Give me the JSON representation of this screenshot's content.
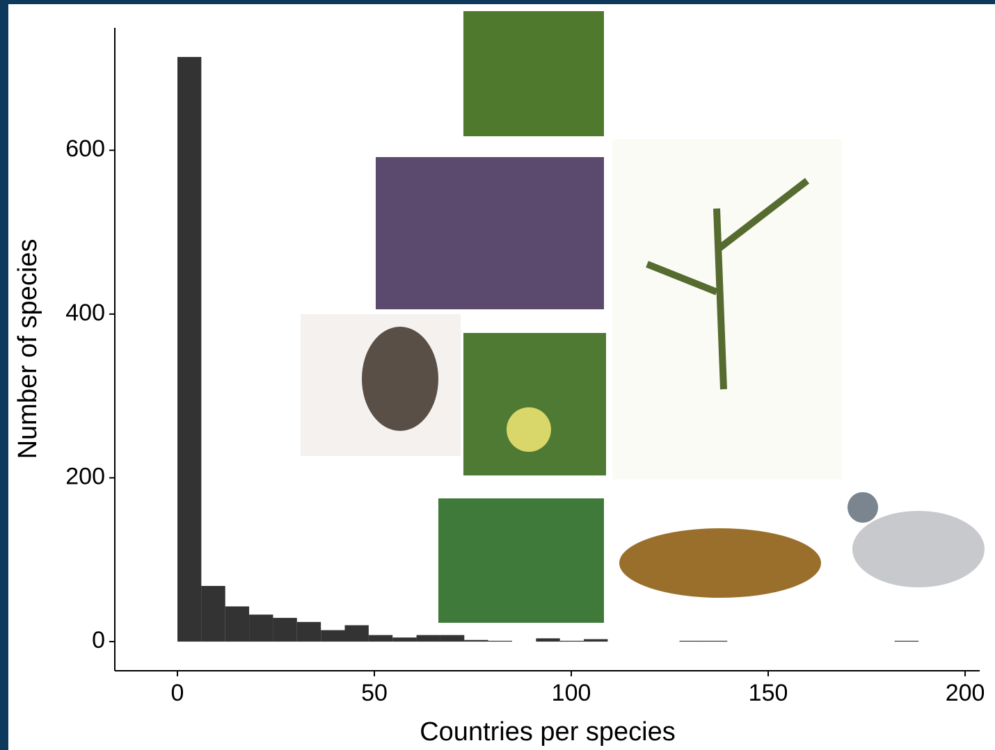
{
  "chart_data": {
    "type": "histogram",
    "xlabel": "Countries per species",
    "ylabel": "Number of species",
    "bins": [
      0,
      6.07,
      12.14,
      18.21,
      24.28,
      30.35,
      36.42,
      42.49,
      48.56,
      54.63,
      60.7,
      66.77,
      72.84,
      78.91,
      84.98,
      91.05,
      97.12,
      103.19,
      109.26,
      115.33,
      121.4,
      127.47,
      133.54,
      139.61,
      145.68,
      151.75,
      157.82,
      163.89,
      169.96,
      176.03,
      182.1,
      188.17,
      194.24
    ],
    "counts": [
      714,
      68,
      43,
      33,
      29,
      24,
      14,
      20,
      8,
      5,
      8,
      8,
      2,
      1,
      0,
      4,
      1,
      3,
      0,
      0,
      0,
      1,
      1,
      0,
      0,
      0,
      0,
      0,
      0,
      0,
      1,
      0
    ],
    "color": "#333333",
    "xlim": [
      -15.9,
      203.7
    ],
    "xticks": [
      0,
      50,
      100,
      150,
      200
    ],
    "ylim": [
      -35.6,
      749.6
    ],
    "yticks": [
      0,
      200,
      400,
      600
    ]
  }
}
